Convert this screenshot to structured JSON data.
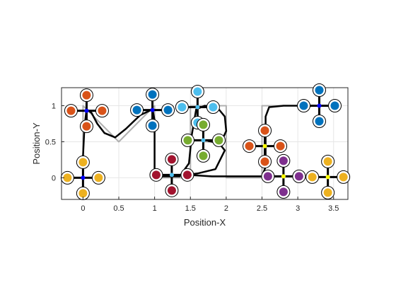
{
  "chart_data": {
    "type": "line",
    "xlabel": "Position-X",
    "ylabel": "Position-Y",
    "xlim": [
      -0.3,
      3.7
    ],
    "ylim": [
      -0.3,
      1.25
    ],
    "xticks": [
      0,
      0.5,
      1,
      1.5,
      2,
      2.5,
      3,
      3.5
    ],
    "xtick_labels": [
      "0",
      "0.5",
      "1",
      "1.5",
      "2",
      "2.5",
      "3",
      "3.5"
    ],
    "yticks": [
      0,
      0.5,
      1
    ],
    "ytick_labels": [
      "0",
      "0.5",
      "1"
    ],
    "grid": true,
    "series": [
      {
        "role": "reference",
        "color": "#b0b0b0",
        "points": [
          [
            0,
            0
          ],
          [
            0,
            1
          ],
          [
            0.5,
            0.5
          ],
          [
            1,
            1
          ],
          [
            1,
            0
          ],
          [
            1.5,
            0
          ],
          [
            1.5,
            1
          ],
          [
            2,
            1
          ],
          [
            2,
            0.5
          ],
          [
            1.7,
            0.5
          ],
          [
            2,
            0.5
          ],
          [
            2,
            0
          ],
          [
            2.5,
            0
          ],
          [
            2.5,
            1
          ],
          [
            3.5,
            1
          ]
        ]
      },
      {
        "role": "trajectory",
        "color": "#000000",
        "points": [
          [
            0,
            0.02
          ],
          [
            0.0,
            0.3
          ],
          [
            0.02,
            0.7
          ],
          [
            0.05,
            0.95
          ],
          [
            0.12,
            0.9
          ],
          [
            0.2,
            0.75
          ],
          [
            0.3,
            0.62
          ],
          [
            0.45,
            0.56
          ],
          [
            0.6,
            0.68
          ],
          [
            0.8,
            0.87
          ],
          [
            0.97,
            0.95
          ],
          [
            1.0,
            0.8
          ],
          [
            1.0,
            0.4
          ],
          [
            1.0,
            0.08
          ],
          [
            1.05,
            0.02
          ],
          [
            1.2,
            0.02
          ],
          [
            1.35,
            0.02
          ],
          [
            1.48,
            0.2
          ],
          [
            1.52,
            0.6
          ],
          [
            1.58,
            0.95
          ],
          [
            1.7,
            1.0
          ],
          [
            1.88,
            0.97
          ],
          [
            1.98,
            0.85
          ],
          [
            2.0,
            0.65
          ],
          [
            1.95,
            0.54
          ],
          [
            1.75,
            0.51
          ],
          [
            1.9,
            0.48
          ],
          [
            1.98,
            0.38
          ],
          [
            1.85,
            0.12
          ],
          [
            1.6,
            0.06
          ],
          [
            1.45,
            0.04
          ],
          [
            1.8,
            0.02
          ],
          [
            2.1,
            0.02
          ],
          [
            2.5,
            0.02
          ],
          [
            2.55,
            0.15
          ],
          [
            2.55,
            0.5
          ],
          [
            2.55,
            0.85
          ],
          [
            2.6,
            0.98
          ],
          [
            2.8,
            1.0
          ],
          [
            3.1,
            1.0
          ],
          [
            3.3,
            1.0
          ],
          [
            3.5,
            1.0
          ]
        ]
      }
    ],
    "markers": [
      {
        "x": 0.0,
        "y": 0.0,
        "color": "#edb120",
        "hub": "#0000ff"
      },
      {
        "x": 0.05,
        "y": 0.93,
        "color": "#d95319",
        "hub": "#0000ff"
      },
      {
        "x": 0.97,
        "y": 0.94,
        "color": "#0072bd",
        "hub": "#0000ff"
      },
      {
        "x": 1.24,
        "y": 0.04,
        "color": "#a2142f",
        "hub": "#4dbeee"
      },
      {
        "x": 1.6,
        "y": 0.98,
        "color": "#4dbeee",
        "hub": "#4dbeee"
      },
      {
        "x": 1.68,
        "y": 0.52,
        "color": "#77ac30",
        "hub": "#4dbeee"
      },
      {
        "x": 2.54,
        "y": 0.44,
        "color": "#d95319",
        "hub": "#ffff00"
      },
      {
        "x": 2.8,
        "y": 0.02,
        "color": "#7e2f8e",
        "hub": "#ffff00"
      },
      {
        "x": 3.42,
        "y": 0.01,
        "color": "#edb120",
        "hub": "#ffff00"
      },
      {
        "x": 3.3,
        "y": 1.0,
        "color": "#0072bd",
        "hub": "#0000ff"
      }
    ]
  }
}
